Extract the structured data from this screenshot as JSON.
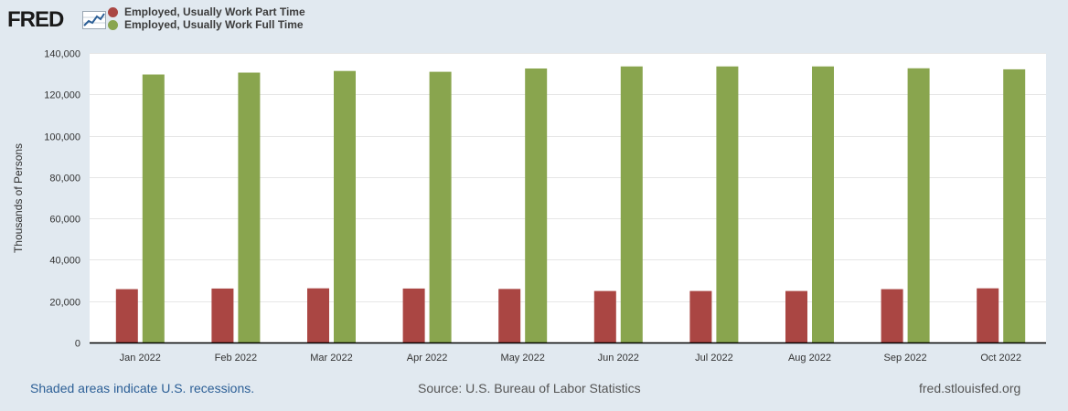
{
  "brand": {
    "logo_text": "FRED"
  },
  "legend": [
    {
      "label": "Employed, Usually Work Part Time",
      "color": "#aa4643"
    },
    {
      "label": "Employed, Usually Work Full Time",
      "color": "#89a54e"
    }
  ],
  "chart_data": {
    "type": "bar",
    "categories": [
      "Jan 2022",
      "Feb 2022",
      "Mar 2022",
      "Apr 2022",
      "May 2022",
      "Jun 2022",
      "Jul 2022",
      "Aug 2022",
      "Sep 2022",
      "Oct 2022"
    ],
    "series": [
      {
        "name": "Employed, Usually Work Part Time",
        "color": "#aa4643",
        "values": [
          25800,
          26100,
          26200,
          26100,
          25900,
          24900,
          24900,
          24900,
          25800,
          26200
        ]
      },
      {
        "name": "Employed, Usually Work Full Time",
        "color": "#89a54e",
        "values": [
          129600,
          130500,
          131300,
          130900,
          132500,
          133500,
          133500,
          133500,
          132600,
          132100
        ]
      }
    ],
    "ylabel": "Thousands of Persons",
    "ylim": [
      0,
      140000
    ],
    "yticks": [
      0,
      20000,
      40000,
      60000,
      80000,
      100000,
      120000,
      140000
    ],
    "ytick_labels": [
      "0",
      "20,000",
      "40,000",
      "60,000",
      "80,000",
      "100,000",
      "120,000",
      "140,000"
    ],
    "grid": true
  },
  "footer": {
    "recessions_note": "Shaded areas indicate U.S. recessions.",
    "source": "Source: U.S. Bureau of Labor Statistics",
    "site": "fred.stlouisfed.org"
  }
}
